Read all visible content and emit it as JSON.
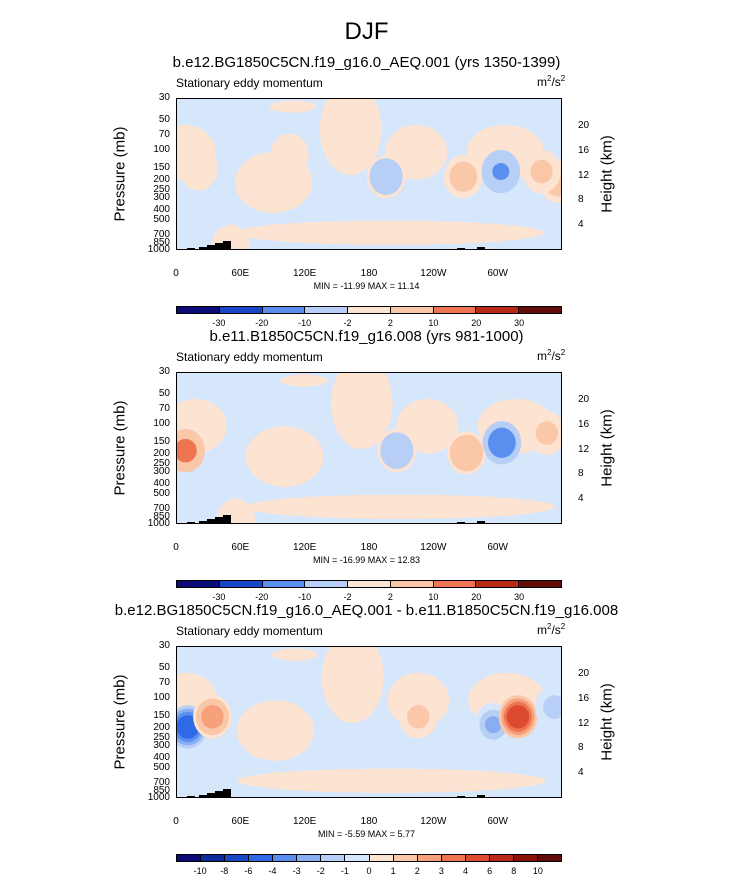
{
  "page_title": "DJF",
  "chart_data": [
    {
      "type": "heatmap",
      "title": "b.e12.BG1850C5CN.f19_g16.0_AEQ.001 (yrs 1350-1399)",
      "variable_label": "Stationary eddy momentum",
      "units": "m",
      "units_sup1": "2",
      "units_mid": "/s",
      "units_sup2": "2",
      "ylabel": "Pressure (mb)",
      "ylabel_right": "Height (km)",
      "y_ticks": [
        "30",
        "50",
        "70",
        "100",
        "150",
        "200",
        "250",
        "300",
        "400",
        "500",
        "700",
        "850",
        "1000"
      ],
      "y_ticks_right": [
        "20",
        "16",
        "12",
        "8",
        "4"
      ],
      "x_ticks": [
        "0",
        "60E",
        "120E",
        "180",
        "120W",
        "60W"
      ],
      "minmax_text": "MIN = -11.99  MAX = 11.14",
      "min": -11.99,
      "max": 11.14,
      "colorbar_levels": [
        "-30",
        "-20",
        "-10",
        "-2",
        "2",
        "10",
        "20",
        "30"
      ],
      "features": [
        {
          "lon": 355,
          "p": 200,
          "value": 4
        },
        {
          "lon": 20,
          "p": 150,
          "value": 2
        },
        {
          "lon": 105,
          "p": 110,
          "value": 2
        },
        {
          "lon": 195,
          "p": 180,
          "value": -6
        },
        {
          "lon": 267,
          "p": 180,
          "value": 5
        },
        {
          "lon": 302,
          "p": 160,
          "value": -12
        },
        {
          "lon": 340,
          "p": 160,
          "value": 3
        },
        {
          "lon": 50,
          "p": 900,
          "value": 2
        }
      ]
    },
    {
      "type": "heatmap",
      "title": "b.e11.B1850C5CN.f19_g16.008 (yrs 981-1000)",
      "variable_label": "Stationary eddy momentum",
      "units": "m",
      "units_sup1": "2",
      "units_mid": "/s",
      "units_sup2": "2",
      "ylabel": "Pressure (mb)",
      "ylabel_right": "Height (km)",
      "y_ticks": [
        "30",
        "50",
        "70",
        "100",
        "150",
        "200",
        "250",
        "300",
        "400",
        "500",
        "700",
        "850",
        "1000"
      ],
      "y_ticks_right": [
        "20",
        "16",
        "12",
        "8",
        "4"
      ],
      "x_ticks": [
        "0",
        "60E",
        "120E",
        "180",
        "120W",
        "60W"
      ],
      "minmax_text": "MIN = -16.99  MAX = 12.83",
      "min": -16.99,
      "max": 12.83,
      "colorbar_levels": [
        "-30",
        "-20",
        "-10",
        "-2",
        "2",
        "10",
        "20",
        "30"
      ],
      "features": [
        {
          "lon": 8,
          "p": 180,
          "value": 13
        },
        {
          "lon": 205,
          "p": 180,
          "value": -7
        },
        {
          "lon": 270,
          "p": 190,
          "value": 7
        },
        {
          "lon": 303,
          "p": 150,
          "value": -17
        },
        {
          "lon": 345,
          "p": 120,
          "value": 3
        },
        {
          "lon": 55,
          "p": 900,
          "value": 2
        }
      ]
    },
    {
      "type": "heatmap",
      "title": "b.e12.BG1850C5CN.f19_g16.0_AEQ.001 - b.e11.B1850C5CN.f19_g16.008",
      "variable_label": "Stationary eddy momentum",
      "units": "m",
      "units_sup1": "2",
      "units_mid": "/s",
      "units_sup2": "2",
      "ylabel": "Pressure (mb)",
      "ylabel_right": "Height (km)",
      "y_ticks": [
        "30",
        "50",
        "70",
        "100",
        "150",
        "200",
        "250",
        "300",
        "400",
        "500",
        "700",
        "850",
        "1000"
      ],
      "y_ticks_right": [
        "20",
        "16",
        "12",
        "8",
        "4"
      ],
      "x_ticks": [
        "0",
        "60E",
        "120E",
        "180",
        "120W",
        "60W"
      ],
      "minmax_text": "MIN = -5.59  MAX = 5.77",
      "min": -5.59,
      "max": 5.77,
      "colorbar_levels": [
        "-10",
        "-8",
        "-6",
        "-4",
        "-3",
        "-2",
        "-1",
        "0",
        "1",
        "2",
        "3",
        "4",
        "6",
        "8",
        "10"
      ],
      "features": [
        {
          "lon": 10,
          "p": 190,
          "value": -5.6
        },
        {
          "lon": 33,
          "p": 150,
          "value": 3
        },
        {
          "lon": 225,
          "p": 150,
          "value": 1.5
        },
        {
          "lon": 295,
          "p": 180,
          "value": -2
        },
        {
          "lon": 318,
          "p": 150,
          "value": 5.8
        },
        {
          "lon": 352,
          "p": 120,
          "value": -1.5
        }
      ]
    }
  ],
  "colors": {
    "colorbar": [
      "#0a0a78",
      "#0c2a9c",
      "#1747c4",
      "#2e6ae6",
      "#5a8ff0",
      "#89adf2",
      "#b7cff6",
      "#d6e6fb",
      "#fde3d2",
      "#fbc7a9",
      "#f6a07c",
      "#ee7551",
      "#dc4b2d",
      "#b72a17",
      "#8a1208",
      "#640c0c"
    ],
    "background_neutral_negative": "#d6e6fb",
    "background_neutral_positive": "#fde3d2"
  }
}
